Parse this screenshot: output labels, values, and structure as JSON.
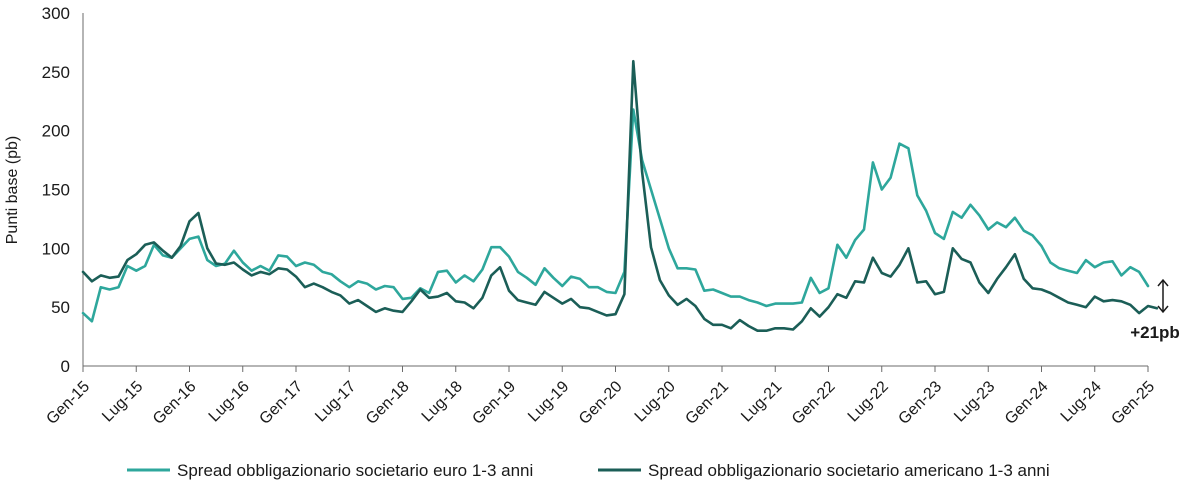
{
  "chart_data": {
    "type": "line",
    "ylabel": "Punti base (pb)",
    "ylim": [
      0,
      300
    ],
    "yticks": [
      0,
      50,
      100,
      150,
      200,
      250,
      300
    ],
    "grid": false,
    "legend_position": "bottom",
    "x_start": "2015-01",
    "x_step": "month",
    "x_ticks": [
      "Gen-15",
      "Lug-15",
      "Gen-16",
      "Lug-16",
      "Gen-17",
      "Lug-17",
      "Gen-18",
      "Lug-18",
      "Gen-19",
      "Lug-19",
      "Gen-20",
      "Lug-20",
      "Gen-21",
      "Lug-21",
      "Gen-22",
      "Lug-22",
      "Gen-23",
      "Lug-23",
      "Gen-24",
      "Lug-24",
      "Gen-25"
    ],
    "x_tick_every": 6,
    "series": [
      {
        "name": "Spread obbligazionario societario euro 1-3 anni",
        "color": "#2ea79c",
        "values": [
          45,
          38,
          67,
          65,
          67,
          85,
          81,
          85,
          103,
          94,
          92,
          100,
          108,
          110,
          90,
          85,
          87,
          98,
          88,
          81,
          85,
          81,
          94,
          93,
          85,
          88,
          86,
          80,
          78,
          72,
          67,
          72,
          70,
          65,
          68,
          67,
          57,
          58,
          66,
          62,
          80,
          81,
          71,
          77,
          72,
          82,
          101,
          101,
          93,
          80,
          75,
          69,
          83,
          75,
          68,
          76,
          74,
          67,
          67,
          63,
          62,
          80,
          218,
          175,
          150,
          125,
          100,
          83,
          83,
          82,
          64,
          65,
          62,
          59,
          59,
          56,
          54,
          51,
          53,
          53,
          53,
          54,
          75,
          62,
          66,
          103,
          92,
          107,
          116,
          173,
          150,
          160,
          189,
          185,
          145,
          132,
          113,
          108,
          131,
          126,
          137,
          128,
          116,
          122,
          118,
          126,
          115,
          111,
          102,
          88,
          83,
          81,
          79,
          90,
          84,
          88,
          89,
          77,
          84,
          80,
          68
        ]
      },
      {
        "name": "Spread obbligazionario societario americano 1-3 anni",
        "color": "#1b5e57",
        "values": [
          80,
          72,
          77,
          75,
          76,
          90,
          95,
          103,
          105,
          98,
          92,
          102,
          123,
          130,
          100,
          87,
          86,
          88,
          82,
          77,
          80,
          78,
          83,
          82,
          76,
          67,
          70,
          67,
          63,
          60,
          53,
          56,
          51,
          46,
          49,
          47,
          46,
          55,
          65,
          58,
          59,
          62,
          55,
          54,
          49,
          58,
          77,
          84,
          64,
          56,
          54,
          52,
          63,
          58,
          53,
          57,
          50,
          49,
          46,
          43,
          44,
          61,
          259,
          165,
          101,
          73,
          60,
          52,
          57,
          51,
          40,
          35,
          35,
          32,
          39,
          34,
          30,
          30,
          32,
          32,
          31,
          38,
          49,
          42,
          50,
          61,
          58,
          72,
          71,
          92,
          79,
          76,
          86,
          100,
          71,
          72,
          61,
          63,
          100,
          91,
          88,
          71,
          62,
          74,
          84,
          95,
          74,
          66,
          65,
          62,
          58,
          54,
          52,
          50,
          59,
          55,
          56,
          55,
          52,
          45,
          51,
          49
        ]
      }
    ],
    "annotations": [
      {
        "text": "+21pb"
      }
    ]
  }
}
